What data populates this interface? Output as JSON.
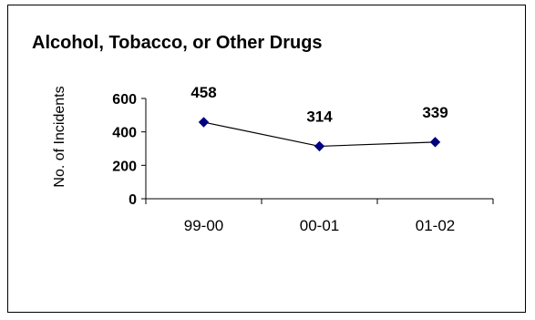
{
  "chart_data": {
    "type": "line",
    "title": "Alcohol, Tobacco, or Other Drugs",
    "xlabel": "",
    "ylabel": "No. of Incidents",
    "categories": [
      "99-00",
      "00-01",
      "01-02"
    ],
    "values": [
      458,
      314,
      339
    ],
    "data_labels": [
      "458",
      "314",
      "339"
    ],
    "y_ticks": [
      "0",
      "200",
      "400",
      "600"
    ],
    "ylim": [
      0,
      600
    ],
    "grid": false,
    "legend": "none",
    "line_color": "#000000",
    "marker_color": "#000080",
    "marker": "diamond"
  }
}
